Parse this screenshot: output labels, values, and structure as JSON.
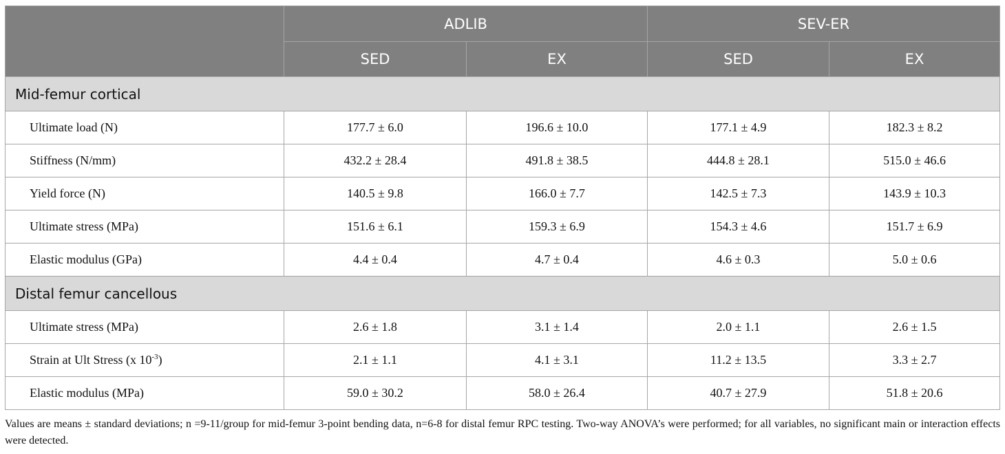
{
  "table": {
    "groups": [
      "ADLIB",
      "SEV-ER"
    ],
    "subgroups": [
      "SED",
      "EX",
      "SED",
      "EX"
    ],
    "sections": [
      {
        "title": "Mid-femur cortical",
        "rows": [
          {
            "label": "Ultimate load (N)",
            "values": [
              "177.7 ± 6.0",
              "196.6 ± 10.0",
              "177.1 ± 4.9",
              "182.3 ± 8.2"
            ]
          },
          {
            "label": "Stiffness (N/mm)",
            "values": [
              "432.2 ± 28.4",
              "491.8 ± 38.5",
              "444.8 ± 28.1",
              "515.0 ± 46.6"
            ]
          },
          {
            "label": "Yield force (N)",
            "values": [
              "140.5 ± 9.8",
              "166.0 ± 7.7",
              "142.5 ± 7.3",
              "143.9 ± 10.3"
            ]
          },
          {
            "label": "Ultimate stress (MPa)",
            "values": [
              "151.6 ± 6.1",
              "159.3 ± 6.9",
              "154.3 ± 4.6",
              "151.7 ± 6.9"
            ]
          },
          {
            "label": "Elastic modulus (GPa)",
            "values": [
              "4.4 ± 0.4",
              "4.7 ± 0.4",
              "4.6 ± 0.3",
              "5.0 ± 0.6"
            ]
          }
        ]
      },
      {
        "title": "Distal femur cancellous",
        "rows": [
          {
            "label": "Ultimate stress (MPa)",
            "values": [
              "2.6 ± 1.8",
              "3.1 ± 1.4",
              "2.0 ± 1.1",
              "2.6 ± 1.5"
            ]
          },
          {
            "label": {
              "text": "Strain at Ult Stress (x 10",
              "sup": "-3",
              "tail": ")"
            },
            "values": [
              "2.1 ± 1.1",
              "4.1 ± 3.1",
              "11.2 ± 13.5",
              "3.3 ± 2.7"
            ]
          },
          {
            "label": "Elastic modulus (MPa)",
            "values": [
              "59.0 ± 30.2",
              "58.0 ± 26.4",
              "40.7 ± 27.9",
              "51.8 ± 20.6"
            ]
          }
        ]
      }
    ],
    "note": "Values are means ± standard deviations; n =9-11/group for mid-femur 3-point bending data, n=6-8 for distal femur RPC testing. Two-way ANOVA’s were performed; for all variables, no significant main or interaction effects were detected."
  }
}
